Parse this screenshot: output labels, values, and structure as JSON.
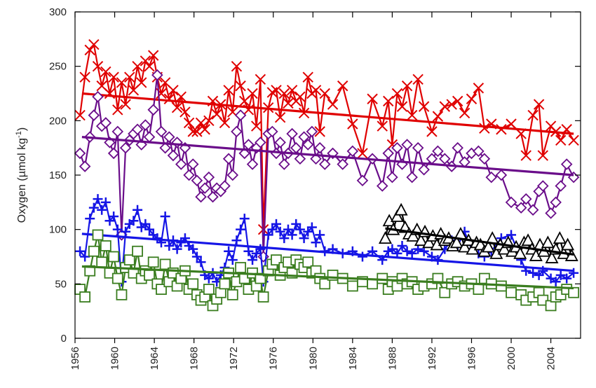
{
  "chart_data": {
    "type": "scatter",
    "title": "",
    "xlabel": "",
    "ylabel": {
      "main": "Oxygen  (µmol kg",
      "sup": "-1",
      "close": ")"
    },
    "xlim": [
      1956,
      2007
    ],
    "ylim": [
      0,
      300
    ],
    "x_ticks": [
      1956,
      1960,
      1964,
      1968,
      1972,
      1976,
      1980,
      1984,
      1988,
      1992,
      1996,
      2000,
      2004
    ],
    "y_ticks": [
      0,
      50,
      100,
      150,
      200,
      250,
      300
    ],
    "grid": false,
    "legend": "none",
    "series": [
      {
        "marker": "x",
        "color": "#e00000",
        "x": [
          1956.5,
          1957.0,
          1957.5,
          1957.9,
          1958.3,
          1958.7,
          1959.1,
          1959.5,
          1959.9,
          1960.3,
          1960.7,
          1961.1,
          1961.5,
          1961.9,
          1962.3,
          1962.7,
          1963.1,
          1963.5,
          1963.9,
          1964.3,
          1964.7,
          1965.1,
          1965.5,
          1965.9,
          1966.3,
          1966.7,
          1967.1,
          1967.5,
          1967.9,
          1968.3,
          1968.7,
          1969.1,
          1969.5,
          1969.9,
          1970.3,
          1970.7,
          1971.1,
          1971.5,
          1971.9,
          1972.3,
          1972.7,
          1973.1,
          1973.5,
          1973.9,
          1974.3,
          1974.7,
          1975.0,
          1975.5,
          1975.9,
          1976.3,
          1976.7,
          1977.1,
          1977.5,
          1977.9,
          1978.3,
          1978.7,
          1979.1,
          1979.5,
          1979.9,
          1980.3,
          1980.7,
          1981.2,
          1982.0,
          1983.0,
          1984.0,
          1985.0,
          1986.0,
          1987.0,
          1987.6,
          1988.0,
          1988.5,
          1989.0,
          1989.5,
          1990.0,
          1990.6,
          1991.2,
          1992.0,
          1992.6,
          1993.3,
          1994.0,
          1994.6,
          1995.3,
          1996.0,
          1996.7,
          1997.3,
          1998.0,
          1999.0,
          2000.0,
          2001.0,
          2001.5,
          2002.2,
          2002.8,
          2003.2,
          2004.0,
          2004.5,
          2005.0,
          2005.6,
          2006.3
        ],
        "y": [
          205,
          240,
          265,
          270,
          250,
          232,
          245,
          225,
          240,
          210,
          235,
          215,
          240,
          228,
          250,
          235,
          255,
          250,
          260,
          240,
          225,
          235,
          220,
          228,
          212,
          222,
          208,
          198,
          190,
          190,
          198,
          192,
          200,
          218,
          206,
          215,
          198,
          228,
          208,
          250,
          232,
          218,
          210,
          225,
          195,
          238,
          100,
          212,
          226,
          228,
          203,
          225,
          216,
          228,
          218,
          222,
          207,
          240,
          225,
          228,
          190,
          225,
          215,
          232,
          197,
          170,
          220,
          195,
          218,
          178,
          225,
          213,
          232,
          205,
          238,
          213,
          190,
          204,
          213,
          215,
          218,
          207,
          220,
          230,
          193,
          197,
          192,
          197,
          188,
          168,
          205,
          215,
          168,
          195,
          190,
          182,
          192,
          182
        ],
        "trend": [
          [
            1956.7,
            225
          ],
          [
            2006.3,
            188
          ]
        ]
      },
      {
        "marker": "diamond",
        "color": "#6a0d8a",
        "x": [
          1956.5,
          1957.0,
          1957.5,
          1957.9,
          1958.3,
          1958.7,
          1959.1,
          1959.5,
          1959.9,
          1960.3,
          1960.7,
          1961.1,
          1961.5,
          1961.9,
          1962.3,
          1962.7,
          1963.1,
          1963.5,
          1963.9,
          1964.3,
          1964.7,
          1965.1,
          1965.5,
          1965.9,
          1966.3,
          1966.7,
          1967.1,
          1967.5,
          1967.9,
          1968.3,
          1968.7,
          1969.1,
          1969.5,
          1969.9,
          1970.3,
          1970.7,
          1971.1,
          1971.5,
          1971.9,
          1972.3,
          1972.7,
          1973.1,
          1973.5,
          1973.9,
          1974.3,
          1974.7,
          1975.0,
          1975.5,
          1975.9,
          1976.3,
          1976.7,
          1977.1,
          1977.5,
          1977.9,
          1978.3,
          1978.7,
          1979.1,
          1979.5,
          1979.9,
          1980.3,
          1980.7,
          1981.2,
          1982.0,
          1983.0,
          1984.0,
          1985.0,
          1986.0,
          1987.0,
          1987.6,
          1988.0,
          1988.5,
          1989.0,
          1989.5,
          1990.0,
          1990.6,
          1991.2,
          1992.0,
          1992.6,
          1993.3,
          1994.0,
          1994.6,
          1995.3,
          1996.0,
          1996.7,
          1997.3,
          1998.0,
          1999.0,
          2000.0,
          2001.0,
          2001.5,
          2002.2,
          2002.8,
          2003.2,
          2004.0,
          2004.5,
          2005.0,
          2005.6,
          2006.3
        ],
        "y": [
          170,
          158,
          185,
          205,
          222,
          195,
          198,
          180,
          170,
          190,
          95,
          175,
          182,
          188,
          192,
          178,
          196,
          185,
          210,
          242,
          190,
          175,
          185,
          168,
          180,
          160,
          175,
          150,
          160,
          145,
          130,
          138,
          148,
          130,
          138,
          135,
          140,
          165,
          150,
          190,
          205,
          170,
          178,
          160,
          175,
          180,
          75,
          188,
          190,
          170,
          180,
          160,
          170,
          188,
          175,
          165,
          185,
          178,
          190,
          165,
          175,
          160,
          170,
          160,
          172,
          145,
          165,
          140,
          170,
          148,
          175,
          160,
          178,
          148,
          175,
          155,
          165,
          172,
          165,
          158,
          175,
          162,
          170,
          172,
          165,
          148,
          150,
          125,
          120,
          128,
          118,
          135,
          140,
          115,
          125,
          140,
          160,
          148
        ],
        "trend": [
          [
            1956.7,
            185
          ],
          [
            2006.3,
            150
          ]
        ]
      },
      {
        "marker": "plus",
        "color": "#1515e6",
        "x": [
          1956.5,
          1957.0,
          1957.5,
          1957.9,
          1958.3,
          1958.7,
          1959.1,
          1959.5,
          1959.9,
          1960.3,
          1960.7,
          1961.1,
          1961.5,
          1961.9,
          1962.3,
          1962.7,
          1963.1,
          1963.5,
          1963.9,
          1964.3,
          1964.7,
          1965.1,
          1965.5,
          1965.9,
          1966.3,
          1966.7,
          1967.1,
          1967.5,
          1967.9,
          1968.3,
          1968.7,
          1969.1,
          1969.5,
          1969.9,
          1970.3,
          1970.7,
          1971.1,
          1971.5,
          1971.9,
          1972.3,
          1972.7,
          1973.1,
          1973.5,
          1973.9,
          1974.3,
          1974.7,
          1975.0,
          1975.5,
          1975.9,
          1976.3,
          1976.7,
          1977.1,
          1977.5,
          1977.9,
          1978.3,
          1978.7,
          1979.1,
          1979.5,
          1979.9,
          1980.3,
          1980.7,
          1981.2,
          1982.0,
          1983.0,
          1984.0,
          1985.0,
          1986.0,
          1987.0,
          1987.6,
          1988.0,
          1988.5,
          1989.0,
          1989.5,
          1990.0,
          1990.6,
          1991.2,
          1992.0,
          1992.6,
          1993.3,
          1994.0,
          1994.6,
          1995.3,
          1996.0,
          1996.7,
          1997.3,
          1998.0,
          1999.0,
          2000.0,
          2001.0,
          2001.5,
          2002.2,
          2002.8,
          2003.2,
          2004.0,
          2004.5,
          2005.0,
          2005.6,
          2006.3
        ],
        "y": [
          80,
          75,
          110,
          120,
          128,
          118,
          125,
          108,
          112,
          100,
          52,
          98,
          105,
          108,
          118,
          102,
          105,
          100,
          95,
          92,
          88,
          112,
          85,
          90,
          82,
          88,
          92,
          85,
          82,
          75,
          70,
          58,
          55,
          60,
          52,
          58,
          65,
          80,
          72,
          90,
          100,
          110,
          80,
          72,
          78,
          82,
          52,
          95,
          100,
          105,
          98,
          92,
          100,
          95,
          105,
          100,
          92,
          98,
          102,
          88,
          95,
          80,
          82,
          78,
          80,
          75,
          80,
          72,
          80,
          82,
          78,
          85,
          80,
          78,
          82,
          80,
          75,
          72,
          82,
          90,
          85,
          98,
          82,
          78,
          75,
          80,
          92,
          95,
          72,
          62,
          60,
          58,
          62,
          55,
          52,
          58,
          55,
          60
        ],
        "trend": [
          [
            1956.7,
            96
          ],
          [
            2006.3,
            62
          ]
        ]
      },
      {
        "marker": "square",
        "color": "#3a7d1f",
        "x": [
          1956.5,
          1957.0,
          1957.5,
          1957.9,
          1958.3,
          1958.7,
          1959.1,
          1959.5,
          1959.9,
          1960.3,
          1960.7,
          1961.1,
          1961.5,
          1961.9,
          1962.3,
          1962.7,
          1963.1,
          1963.5,
          1963.9,
          1964.3,
          1964.7,
          1965.1,
          1965.5,
          1965.9,
          1966.3,
          1966.7,
          1967.1,
          1967.5,
          1967.9,
          1968.3,
          1968.7,
          1969.1,
          1969.5,
          1969.9,
          1970.3,
          1970.7,
          1971.1,
          1971.5,
          1971.9,
          1972.3,
          1972.7,
          1973.1,
          1973.5,
          1973.9,
          1974.3,
          1974.7,
          1975.0,
          1975.5,
          1975.9,
          1976.3,
          1976.7,
          1977.1,
          1977.5,
          1977.9,
          1978.3,
          1978.7,
          1979.1,
          1979.5,
          1979.9,
          1980.3,
          1980.7,
          1981.2,
          1982.0,
          1983.0,
          1984.0,
          1985.0,
          1986.0,
          1987.0,
          1987.6,
          1988.0,
          1988.5,
          1989.0,
          1989.5,
          1990.0,
          1990.6,
          1991.2,
          1992.0,
          1992.6,
          1993.3,
          1994.0,
          1994.6,
          1995.3,
          1996.0,
          1996.7,
          1997.3,
          1998.0,
          1999.0,
          2000.0,
          2001.0,
          2001.5,
          2002.2,
          2002.8,
          2003.2,
          2004.0,
          2004.5,
          2005.0,
          2005.6,
          2006.3
        ],
        "y": [
          45,
          38,
          62,
          80,
          95,
          70,
          85,
          60,
          75,
          55,
          40,
          65,
          72,
          60,
          80,
          55,
          62,
          58,
          70,
          50,
          45,
          68,
          52,
          60,
          48,
          55,
          62,
          45,
          50,
          40,
          35,
          38,
          45,
          30,
          36,
          42,
          50,
          60,
          40,
          52,
          65,
          55,
          45,
          60,
          48,
          55,
          38,
          62,
          68,
          72,
          58,
          65,
          70,
          60,
          72,
          68,
          65,
          70,
          60,
          62,
          55,
          50,
          58,
          55,
          48,
          52,
          50,
          55,
          45,
          52,
          48,
          55,
          50,
          52,
          45,
          48,
          50,
          55,
          42,
          50,
          52,
          48,
          50,
          45,
          55,
          50,
          48,
          42,
          40,
          35,
          38,
          42,
          35,
          30,
          38,
          40,
          45,
          42
        ],
        "trend": [
          [
            1956.7,
            66
          ],
          [
            2006.3,
            46
          ]
        ]
      },
      {
        "marker": "triangle",
        "color": "#000000",
        "x": [
          1987.3,
          1987.7,
          1988.1,
          1988.5,
          1988.9,
          1989.3,
          1989.7,
          1990.1,
          1990.5,
          1990.9,
          1991.3,
          1991.7,
          1992.1,
          1992.5,
          1992.9,
          1993.3,
          1993.7,
          1994.1,
          1994.5,
          1994.9,
          1995.3,
          1995.7,
          1996.1,
          1996.5,
          1996.9,
          1997.3,
          1997.7,
          1998.1,
          1998.5,
          1998.9,
          1999.3,
          1999.7,
          2000.1,
          2000.5,
          2000.9,
          2001.3,
          2001.7,
          2002.1,
          2002.5,
          2002.9,
          2003.3,
          2003.7,
          2004.1,
          2004.5,
          2004.9,
          2005.3,
          2005.7,
          2006.1
        ],
        "y": [
          92,
          108,
          100,
          112,
          118,
          102,
          96,
          94,
          100,
          90,
          98,
          88,
          94,
          86,
          96,
          90,
          92,
          85,
          88,
          96,
          84,
          90,
          82,
          88,
          86,
          80,
          84,
          92,
          78,
          86,
          82,
          88,
          80,
          84,
          78,
          88,
          90,
          82,
          76,
          86,
          80,
          88,
          74,
          82,
          92,
          78,
          86,
          76
        ],
        "trend": [
          [
            1987.3,
            101
          ],
          [
            2006.3,
            77
          ]
        ]
      }
    ]
  }
}
